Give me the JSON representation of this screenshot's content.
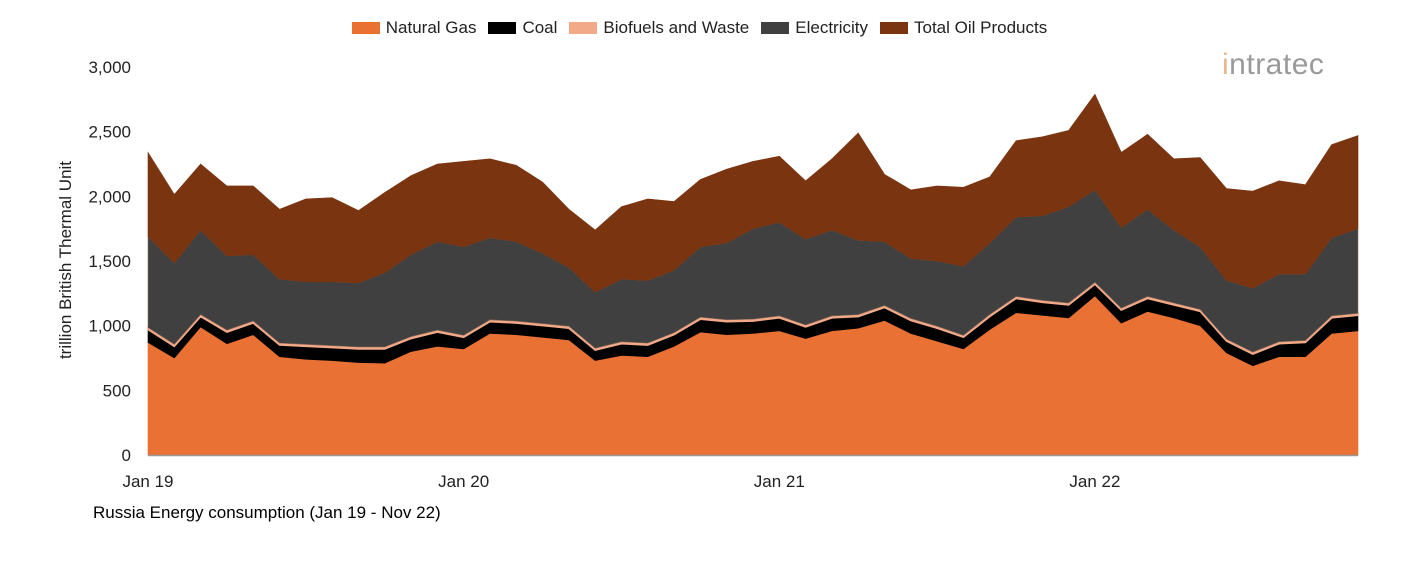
{
  "chart_data": {
    "type": "area",
    "stacked": true,
    "caption": "Russia Energy consumption (Jan 19 - Nov 22)",
    "ylabel": "trillion British Thermal Unit",
    "xlabel": "",
    "ylim": [
      0,
      3000
    ],
    "yticks": [
      0,
      500,
      1000,
      1500,
      2000,
      2500,
      3000
    ],
    "ytick_labels": [
      "0",
      "500",
      "1,000",
      "1,500",
      "2,000",
      "2,500",
      "3,000"
    ],
    "xtick_labels": [
      {
        "label": "Jan 19",
        "month_index": 0
      },
      {
        "label": "Jan 20",
        "month_index": 12
      },
      {
        "label": "Jan 21",
        "month_index": 24
      },
      {
        "label": "Jan 22",
        "month_index": 36
      }
    ],
    "x_start": "2019-01",
    "x_end": "2022-11",
    "grid": false,
    "legend_position": "top",
    "series": [
      {
        "name": "Natural Gas",
        "color": "#E87133",
        "values": [
          870,
          750,
          990,
          860,
          930,
          760,
          740,
          730,
          715,
          710,
          800,
          840,
          820,
          940,
          930,
          910,
          890,
          730,
          770,
          760,
          840,
          950,
          930,
          940,
          960,
          900,
          960,
          980,
          1040,
          940,
          880,
          820,
          970,
          1100,
          1080,
          1060,
          1230,
          1020,
          1110,
          1060,
          1000,
          790,
          690,
          760,
          760,
          940,
          960
        ]
      },
      {
        "name": "Coal",
        "color": "#000000",
        "values": [
          100,
          90,
          80,
          90,
          90,
          90,
          100,
          100,
          105,
          110,
          100,
          110,
          90,
          90,
          90,
          90,
          90,
          80,
          90,
          90,
          90,
          100,
          100,
          95,
          100,
          90,
          100,
          90,
          100,
          100,
          100,
          90,
          100,
          110,
          100,
          100,
          90,
          100,
          100,
          100,
          110,
          90,
          90,
          100,
          110,
          120,
          120
        ]
      },
      {
        "name": "Biofuels and Waste",
        "color": "#F2A987",
        "values": [
          15,
          15,
          15,
          15,
          15,
          15,
          15,
          15,
          15,
          15,
          15,
          15,
          15,
          15,
          15,
          15,
          15,
          15,
          15,
          15,
          15,
          15,
          15,
          15,
          15,
          15,
          15,
          15,
          15,
          15,
          15,
          15,
          15,
          15,
          15,
          15,
          15,
          15,
          15,
          15,
          15,
          15,
          15,
          15,
          15,
          15,
          15
        ]
      },
      {
        "name": "Electricity",
        "color": "#404040",
        "values": [
          705,
          630,
          655,
          575,
          515,
          495,
          485,
          495,
          495,
          575,
          635,
          685,
          685,
          635,
          615,
          545,
          455,
          435,
          485,
          485,
          485,
          545,
          595,
          700,
          725,
          665,
          665,
          575,
          495,
          465,
          505,
          535,
          555,
          615,
          655,
          745,
          715,
          625,
          675,
          565,
          485,
          455,
          495,
          525,
          515,
          605,
          655
        ]
      },
      {
        "name": "Total Oil Products",
        "color": "#7B3410",
        "values": [
          650,
          530,
          510,
          540,
          530,
          540,
          640,
          650,
          560,
          620,
          610,
          600,
          660,
          610,
          590,
          550,
          450,
          480,
          560,
          630,
          530,
          520,
          570,
          520,
          510,
          450,
          550,
          830,
          520,
          530,
          580,
          610,
          510,
          590,
          610,
          590,
          740,
          580,
          580,
          550,
          690,
          710,
          750,
          720,
          690,
          720,
          720
        ]
      }
    ]
  },
  "logo": {
    "text_i": "i",
    "text_rest": "ntratec"
  }
}
